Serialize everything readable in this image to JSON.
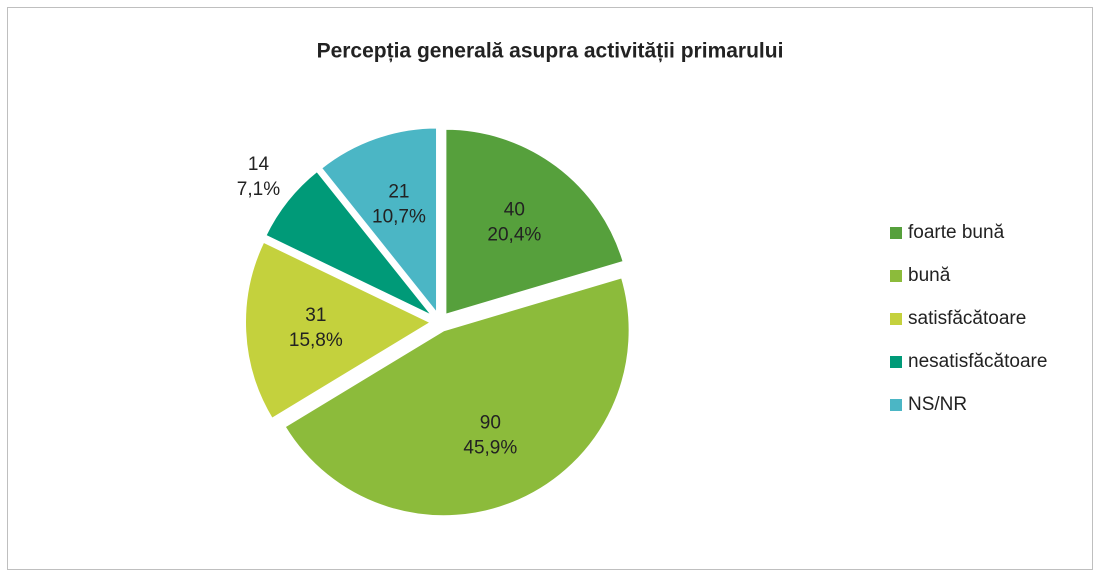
{
  "chart_data": {
    "type": "pie",
    "title": "Percepția generală asupra activității primarului",
    "categories": [
      "foarte bună",
      "bună",
      "satisfăcătoare",
      "nesatisfăcătoare",
      "NS/NR"
    ],
    "values": [
      40,
      90,
      31,
      14,
      21
    ],
    "percentages": [
      20.4,
      45.9,
      15.8,
      7.1,
      10.7
    ],
    "percentage_labels": [
      "20,4%",
      "45,9%",
      "15,8%",
      "7,1%",
      "10,7%"
    ],
    "colors": [
      "#56a03c",
      "#8cbb3b",
      "#c4d13d",
      "#009a78",
      "#4bb6c5"
    ],
    "legend": "right"
  }
}
